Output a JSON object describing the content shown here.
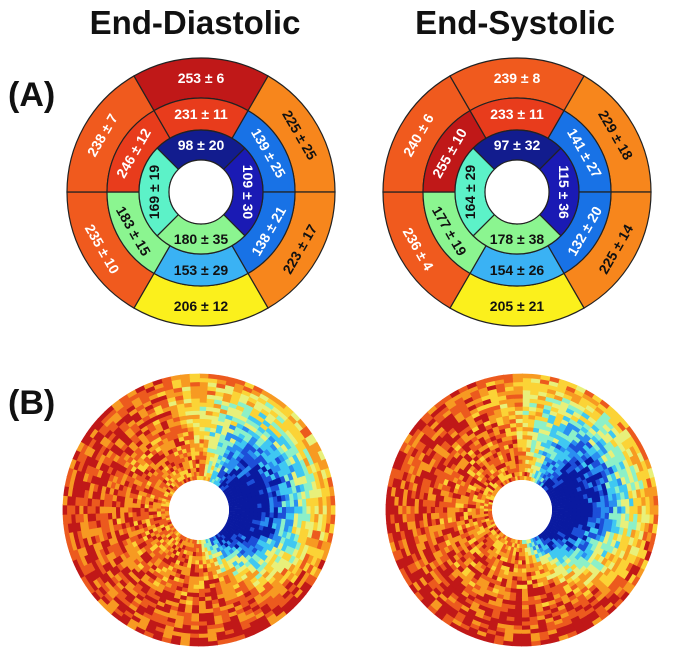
{
  "titles": {
    "end_diastolic": "End-Diastolic",
    "end_systolic": "End-Systolic"
  },
  "panel_labels": {
    "a": "(A)",
    "b": "(B)"
  },
  "colors": {
    "dark_red": "#c01818",
    "red": "#e83c1c",
    "red_orange": "#f05a1e",
    "orange": "#f7861c",
    "yellow": "#fbf01c",
    "light_green": "#8bf590",
    "cyan_green": "#5cf2c8",
    "cyan": "#25d6f2",
    "light_blue": "#3ab2f4",
    "blue": "#1872e6",
    "navy": "#121c8e",
    "dark_blue": "#1a1ab4",
    "outline": "#222222"
  },
  "bullseye_ed": {
    "basal": [
      {
        "label": "225 ± 25",
        "color": "orange"
      },
      {
        "label": "223 ± 17",
        "color": "orange"
      },
      {
        "label": "206 ± 12",
        "color": "yellow"
      },
      {
        "label": "235 ± 10",
        "color": "red_orange"
      },
      {
        "label": "238 ± 7",
        "color": "red_orange"
      },
      {
        "label": "253 ± 6",
        "color": "dark_red"
      }
    ],
    "mid": [
      {
        "label": "139 ± 25",
        "color": "blue"
      },
      {
        "label": "138 ± 21",
        "color": "blue"
      },
      {
        "label": "153 ± 29",
        "color": "light_blue"
      },
      {
        "label": "183 ± 15",
        "color": "light_green"
      },
      {
        "label": "246 ± 12",
        "color": "red"
      },
      {
        "label": "231 ± 11",
        "color": "red"
      }
    ],
    "apical": [
      {
        "label": "98 ± 20",
        "color": "navy"
      },
      {
        "label": "109 ± 30",
        "color": "dark_blue"
      },
      {
        "label": "180 ± 35",
        "color": "light_green"
      },
      {
        "label": "169 ± 19",
        "color": "cyan_green"
      }
    ]
  },
  "bullseye_es": {
    "basal": [
      {
        "label": "229 ± 18",
        "color": "orange"
      },
      {
        "label": "225 ± 14",
        "color": "orange"
      },
      {
        "label": "205 ± 21",
        "color": "yellow"
      },
      {
        "label": "236 ± 4",
        "color": "red_orange"
      },
      {
        "label": "240 ± 6",
        "color": "red_orange"
      },
      {
        "label": "239 ± 8",
        "color": "red_orange"
      }
    ],
    "mid": [
      {
        "label": "141 ± 27",
        "color": "blue"
      },
      {
        "label": "132 ± 20",
        "color": "blue"
      },
      {
        "label": "154 ± 26",
        "color": "light_blue"
      },
      {
        "label": "177 ± 19",
        "color": "light_green"
      },
      {
        "label": "255 ± 10",
        "color": "dark_red"
      },
      {
        "label": "233 ± 11",
        "color": "red"
      }
    ],
    "apical": [
      {
        "label": "97 ± 32",
        "color": "navy"
      },
      {
        "label": "115 ± 36",
        "color": "dark_blue"
      },
      {
        "label": "178 ± 38",
        "color": "light_green"
      },
      {
        "label": "164 ± 29",
        "color": "cyan_green"
      }
    ]
  },
  "heatmap_colormap": [
    "#0a1aa0",
    "#1d4fd8",
    "#2a8ef0",
    "#3fc8f2",
    "#8cf0c8",
    "#e8f07a",
    "#fbd336",
    "#f79a22",
    "#ec5a1e",
    "#c01818"
  ]
}
